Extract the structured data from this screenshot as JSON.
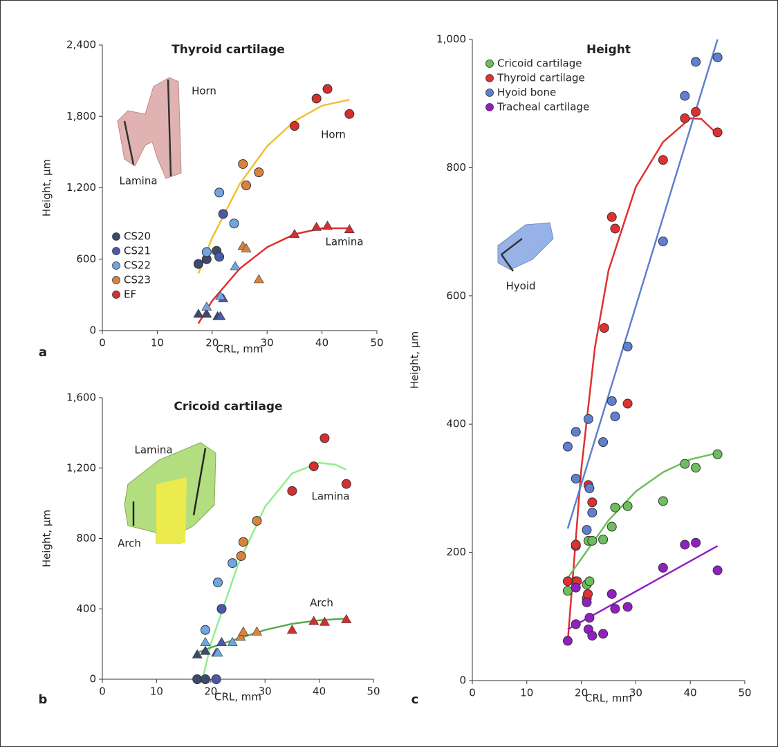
{
  "chart_data": [
    {
      "type": "scatter",
      "title": "Thyroid cartilage",
      "panel_label": "a",
      "xlabel": "CRL, mm",
      "ylabel": "Height, µm",
      "xlim": [
        0,
        50
      ],
      "xticks": [
        0,
        10,
        20,
        30,
        40,
        50
      ],
      "ylim": [
        0,
        2400
      ],
      "yticks": [
        0,
        600,
        {
          "value": 1200,
          "label": "1,200"
        },
        {
          "value": 1800,
          "label": "1,800"
        },
        {
          "value": 2400,
          "label": "2,400"
        }
      ],
      "legend": "lower left",
      "series": [
        {
          "name": "CS20",
          "color": "#3c4a6e",
          "x": [
            17.5,
            19,
            20.8
          ],
          "values": [
            560,
            600,
            670
          ],
          "triangle_x": [
            17.5,
            19,
            21
          ],
          "triangle_values": [
            140,
            140,
            120
          ]
        },
        {
          "name": "CS21",
          "color": "#4a5aa8",
          "x": [
            21.3,
            22
          ],
          "values": [
            620,
            980
          ],
          "triangle_x": [
            21.5,
            22
          ],
          "triangle_values": [
            120,
            270
          ]
        },
        {
          "name": "CS22",
          "color": "#6ea6e0",
          "x": [
            19,
            21.3,
            24
          ],
          "values": [
            660,
            1160,
            900
          ],
          "triangle_x": [
            19,
            21.5,
            24.2
          ],
          "triangle_values": [
            200,
            290,
            540
          ]
        },
        {
          "name": "CS23",
          "color": "#d9823e",
          "x": [
            25.6,
            26.2,
            28.5
          ],
          "values": [
            1400,
            1220,
            1330
          ],
          "triangle_x": [
            25.6,
            26.2,
            28.5
          ],
          "triangle_values": [
            710,
            690,
            430
          ]
        },
        {
          "name": "EF",
          "color": "#d62e2e",
          "x": [
            35,
            39,
            41,
            45
          ],
          "values": [
            1720,
            1950,
            2030,
            1820
          ],
          "triangle_x": [
            35,
            39,
            41,
            45
          ],
          "triangle_values": [
            810,
            870,
            880,
            850
          ]
        }
      ],
      "fits": [
        {
          "color": "#f0c030",
          "x": [
            17.5,
            20,
            25,
            30,
            35,
            40,
            45
          ],
          "values": [
            480,
            780,
            1230,
            1550,
            1760,
            1890,
            1940
          ]
        },
        {
          "color": "#e03030",
          "x": [
            17.5,
            20,
            25,
            30,
            35,
            40,
            45
          ],
          "values": [
            60,
            250,
            520,
            700,
            810,
            860,
            860
          ]
        }
      ],
      "annotations": [
        "Horn",
        "Lamina",
        "Horn",
        "Lamina"
      ]
    },
    {
      "type": "scatter",
      "title": "Cricoid cartilage",
      "panel_label": "b",
      "xlabel": "CRL, mm",
      "ylabel": "Height, µm",
      "xlim": [
        0,
        50
      ],
      "xticks": [
        0,
        10,
        20,
        30,
        40,
        50
      ],
      "ylim": [
        0,
        1600
      ],
      "yticks": [
        0,
        400,
        800,
        {
          "value": 1200,
          "label": "1,200"
        },
        {
          "value": 1600,
          "label": "1,600"
        }
      ],
      "series": [
        {
          "color": "#3c4a6e",
          "x": [
            17.5,
            19
          ],
          "values": [
            0,
            0
          ],
          "triangle_x": [
            17.5,
            19
          ],
          "triangle_values": [
            140,
            160
          ]
        },
        {
          "color": "#4a5aa8",
          "x": [
            21,
            22
          ],
          "values": [
            0,
            400
          ],
          "triangle_x": [
            21,
            22
          ],
          "triangle_values": [
            150,
            210
          ]
        },
        {
          "color": "#6ea6e0",
          "x": [
            19,
            21.3,
            24
          ],
          "values": [
            280,
            550,
            660
          ],
          "triangle_x": [
            19,
            21.3,
            24
          ],
          "triangle_values": [
            210,
            150,
            210
          ]
        },
        {
          "color": "#d9823e",
          "x": [
            25.6,
            26,
            28.5
          ],
          "values": [
            700,
            780,
            900
          ],
          "triangle_x": [
            25.5,
            26,
            28.5
          ],
          "triangle_values": [
            240,
            270,
            270
          ]
        },
        {
          "color": "#d62e2e",
          "x": [
            35,
            39,
            41,
            45
          ],
          "values": [
            1070,
            1210,
            1370,
            1110
          ],
          "triangle_x": [
            35,
            39,
            41,
            45
          ],
          "triangle_values": [
            280,
            330,
            325,
            340
          ]
        }
      ],
      "fits": [
        {
          "color": "#90ee90",
          "x": [
            18.5,
            20,
            25,
            30,
            35,
            40,
            43,
            45
          ],
          "values": [
            0,
            200,
            650,
            980,
            1170,
            1230,
            1220,
            1190
          ]
        },
        {
          "color": "#5aaa50",
          "x": [
            17.5,
            20,
            25,
            30,
            35,
            40,
            45
          ],
          "values": [
            150,
            180,
            230,
            280,
            315,
            335,
            345
          ]
        }
      ],
      "annotations": [
        "Lamina",
        "Arch",
        "Lamina",
        "Arch"
      ]
    },
    {
      "type": "scatter",
      "title": "Height",
      "panel_label": "c",
      "xlabel": "CRL, mm",
      "ylabel": "Height, µm",
      "xlim": [
        0,
        50
      ],
      "xticks": [
        0,
        10,
        20,
        30,
        40,
        50
      ],
      "ylim": [
        0,
        1000
      ],
      "yticks": [
        0,
        200,
        400,
        600,
        800,
        {
          "value": 1000,
          "label": "1,000"
        }
      ],
      "legend": "upper left",
      "series": [
        {
          "name": "Cricoid cartilage",
          "color": "#6cbf5a",
          "x": [
            17.5,
            19,
            21,
            21.3,
            21.5,
            22,
            24,
            25.6,
            26.2,
            28.5,
            35,
            39,
            41,
            45
          ],
          "values": [
            140,
            155,
            150,
            218,
            155,
            218,
            220,
            240,
            270,
            272,
            280,
            338,
            332,
            353
          ]
        },
        {
          "name": "Thyroid cartilage",
          "color": "#e03030",
          "x": [
            17.5,
            19,
            19,
            19.2,
            21,
            21.2,
            21.3,
            22,
            24.2,
            25.6,
            26.2,
            28.5,
            35,
            39,
            41,
            45
          ],
          "values": [
            155,
            210,
            212,
            155,
            128,
            135,
            305,
            278,
            550,
            723,
            705,
            432,
            812,
            877,
            887,
            855
          ]
        },
        {
          "name": "Hyoid bone",
          "color": "#5f7fd0",
          "x": [
            17.5,
            19,
            19,
            21,
            21.3,
            21.5,
            22,
            24,
            25.6,
            26.2,
            28.5,
            35,
            39,
            41,
            45
          ],
          "values": [
            365,
            388,
            315,
            235,
            408,
            300,
            262,
            372,
            436,
            412,
            521,
            685,
            912,
            965,
            972
          ]
        },
        {
          "name": "Tracheal cartilage",
          "color": "#9020c0",
          "x": [
            17.5,
            19,
            19,
            21,
            21.3,
            21.5,
            22,
            24,
            25.6,
            26.2,
            28.5,
            35,
            39,
            41,
            45
          ],
          "values": [
            62,
            88,
            145,
            122,
            80,
            98,
            70,
            73,
            135,
            112,
            115,
            176,
            212,
            215,
            172
          ]
        }
      ],
      "fits": [
        {
          "color": "#e03030",
          "x": [
            17.5,
            20,
            22.5,
            25,
            30,
            35,
            40,
            42,
            45
          ],
          "values": [
            60,
            330,
            520,
            640,
            770,
            840,
            877,
            876,
            852
          ]
        },
        {
          "color": "#5f7fd0",
          "x": [
            17.5,
            45
          ],
          "values": [
            237,
            1000
          ]
        },
        {
          "color": "#6cbf5a",
          "x": [
            17.5,
            20,
            25,
            30,
            35,
            40,
            45
          ],
          "values": [
            160,
            190,
            250,
            295,
            325,
            345,
            355
          ]
        },
        {
          "color": "#9020c0",
          "x": [
            17.5,
            45
          ],
          "values": [
            80,
            210
          ]
        }
      ],
      "annotations": [
        "Hyoid"
      ]
    }
  ]
}
